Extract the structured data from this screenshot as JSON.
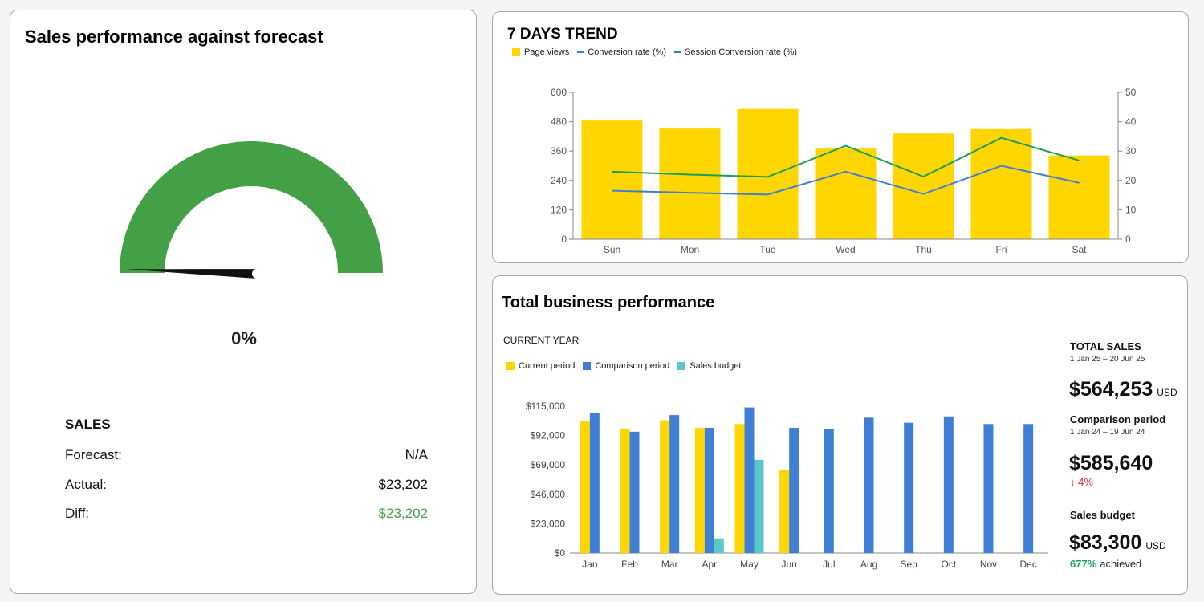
{
  "sales_card": {
    "title": "Sales performance against forecast",
    "gauge": {
      "percent_label": "0%",
      "value_fraction": 0.0,
      "color": "#43a047",
      "needle_color": "#111111"
    },
    "section_title": "SALES",
    "rows": [
      {
        "label": "Forecast:",
        "value": "N/A"
      },
      {
        "label": "Actual:",
        "value": "$23,202"
      },
      {
        "label": "Diff:",
        "value": "$23,202"
      }
    ]
  },
  "trend_card": {
    "title": "7 DAYS TREND",
    "legend": [
      {
        "label": "Page views",
        "color": "#ffd600",
        "kind": "box"
      },
      {
        "label": "Conversion rate (%)",
        "color": "#3f7fd6",
        "kind": "line"
      },
      {
        "label": "Session Conversion rate (%)",
        "color": "#1e9e55",
        "kind": "line"
      }
    ]
  },
  "total_card": {
    "title": "Total business performance",
    "subtitle": "CURRENT YEAR",
    "legend": [
      {
        "label": "Current period",
        "color": "#ffd600"
      },
      {
        "label": "Comparison period",
        "color": "#3f7fd6"
      },
      {
        "label": "Sales budget",
        "color": "#5ac8c8"
      }
    ],
    "total_sales": {
      "label": "TOTAL SALES",
      "range": "1 Jan 25 – 20 Jun 25",
      "value": "$564,253",
      "unit": "USD"
    },
    "comparison": {
      "label": "Comparison period",
      "range": "1 Jan 24 – 19 Jun 24",
      "value": "$585,640",
      "change": "↓ 4%"
    },
    "budget": {
      "label": "Sales budget",
      "value": "$83,300",
      "unit": "USD",
      "achieved_pct": "677%",
      "achieved_label": "achieved"
    }
  },
  "chart_data": [
    {
      "type": "bar+line",
      "title": "7 DAYS TREND",
      "categories": [
        "Sun",
        "Mon",
        "Tue",
        "Wed",
        "Thu",
        "Fri",
        "Sat"
      ],
      "y_left": {
        "ticks": [
          "0",
          "120",
          "240",
          "360",
          "480",
          "600"
        ],
        "ylim": [
          0,
          600
        ]
      },
      "y_right": {
        "ticks": [
          "0",
          "10",
          "20",
          "30",
          "40",
          "50"
        ],
        "ylim": [
          0,
          50
        ]
      },
      "series": [
        {
          "name": "Page views",
          "kind": "bar",
          "axis": "left",
          "color": "#ffd600",
          "values": [
            485,
            452,
            532,
            370,
            432,
            450,
            342
          ]
        },
        {
          "name": "Conversion rate (%)",
          "kind": "line",
          "axis": "right",
          "color": "#3f7fd6",
          "values": [
            16.5,
            15.8,
            15.2,
            23,
            15.4,
            25,
            19.2
          ]
        },
        {
          "name": "Session Conversion rate (%)",
          "kind": "line",
          "axis": "right",
          "color": "#1e9e55",
          "values": [
            23,
            22,
            21.2,
            31.8,
            21.3,
            34.5,
            26.8
          ]
        }
      ],
      "grid": false
    },
    {
      "type": "bar",
      "title": "CURRENT YEAR",
      "categories": [
        "Jan",
        "Feb",
        "Mar",
        "Apr",
        "May",
        "Jun",
        "Jul",
        "Aug",
        "Sep",
        "Oct",
        "Nov",
        "Dec"
      ],
      "y_ticks": [
        "$0",
        "$23,000",
        "$46,000",
        "$69,000",
        "$92,000",
        "$115,000"
      ],
      "ylim": [
        0,
        115000
      ],
      "series": [
        {
          "name": "Current period",
          "color": "#ffd600",
          "values": [
            103000,
            97000,
            104000,
            98000,
            101000,
            65000,
            null,
            null,
            null,
            null,
            null,
            null
          ]
        },
        {
          "name": "Comparison period",
          "color": "#3f7fd6",
          "values": [
            110000,
            95000,
            108000,
            98000,
            114000,
            98000,
            97000,
            106000,
            102000,
            107000,
            101000,
            101000
          ]
        },
        {
          "name": "Sales budget",
          "color": "#5ac8c8",
          "values": [
            null,
            null,
            null,
            11500,
            73000,
            null,
            null,
            null,
            null,
            null,
            null,
            null
          ]
        }
      ],
      "grid": false
    }
  ]
}
